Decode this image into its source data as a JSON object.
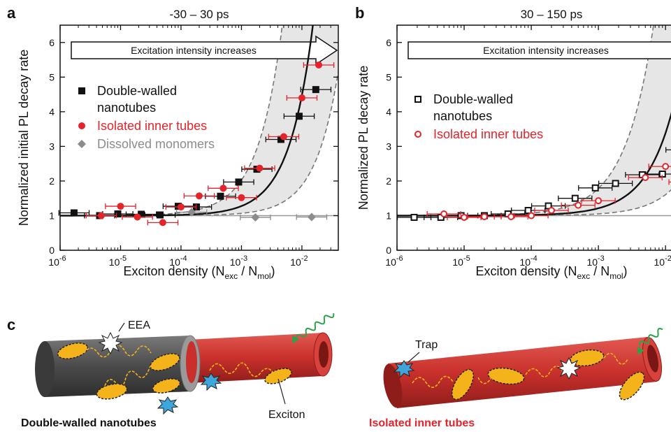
{
  "panel_labels": {
    "a": "a",
    "b": "b",
    "c": "c"
  },
  "colors": {
    "dw": "#111111",
    "inner": "#e3242b",
    "mono": "#8c8c8c",
    "shade": "#e6e6e6",
    "tube_grey": "#555555",
    "tube_red": "#c9302c",
    "exciton": "#f5b31b",
    "trap": "#3fa6dc",
    "photon": "#2ca24a"
  },
  "chart_data": [
    {
      "type": "scatter",
      "title": "-30 – 30 ps",
      "xlabel": "Exciton density (N",
      "xlabel_sub1": "exc",
      "xlabel_mid": " / N",
      "xlabel_sub2": "mol",
      "xlabel_end": ")",
      "ylabel": "Normalized initial PL decay rate",
      "x_scale": "log",
      "xlim": [
        1e-06,
        0.04
      ],
      "ylim": [
        0,
        6.5
      ],
      "x_ticks": [
        {
          "exp": "-6"
        },
        {
          "exp": "-5"
        },
        {
          "exp": "-4"
        },
        {
          "exp": "-3"
        },
        {
          "exp": "-2"
        }
      ],
      "x_tick_base": "10",
      "y_ticks": [
        "0",
        "1",
        "2",
        "3",
        "4",
        "5",
        "6"
      ],
      "arrow_text": "Excitation intensity increases",
      "legend": [
        {
          "name": "Double-walled",
          "name2": "nanotubes",
          "marker": "square-filled",
          "color": "#111111"
        },
        {
          "name": "Isolated inner tubes",
          "marker": "circle-filled",
          "color": "#e3242b"
        },
        {
          "name": "Dissolved monomers",
          "marker": "diamond-filled",
          "color": "#8c8c8c"
        }
      ],
      "series": [
        {
          "key": "dw",
          "marker": "square-filled",
          "color": "#111111",
          "points": [
            [
              1.7e-06,
              1.08
            ],
            [
              4.5e-06,
              1.0
            ],
            [
              9e-06,
              1.05
            ],
            [
              2.2e-05,
              1.04
            ],
            [
              4.5e-05,
              1.02
            ],
            [
              9e-05,
              1.27
            ],
            [
              0.00018,
              1.25
            ],
            [
              0.00045,
              1.56
            ],
            [
              0.0009,
              1.97
            ],
            [
              0.0018,
              2.34
            ],
            [
              0.0045,
              3.2
            ],
            [
              0.009,
              3.87
            ],
            [
              0.017,
              4.64
            ]
          ]
        },
        {
          "key": "inner",
          "marker": "circle-filled",
          "color": "#e3242b",
          "points": [
            [
              4.8e-06,
              1.0
            ],
            [
              1e-05,
              1.27
            ],
            [
              1.9e-05,
              0.96
            ],
            [
              5e-05,
              0.8
            ],
            [
              0.0001,
              1.25
            ],
            [
              0.0002,
              1.57
            ],
            [
              0.0005,
              1.79
            ],
            [
              0.001,
              1.52
            ],
            [
              0.002,
              2.37
            ],
            [
              0.005,
              3.28
            ],
            [
              0.01,
              4.4
            ],
            [
              0.019,
              5.35
            ]
          ]
        },
        {
          "key": "mono",
          "marker": "diamond-filled",
          "color": "#8c8c8c",
          "points": [
            [
              0.00015,
              1.1
            ],
            [
              0.0017,
              0.95
            ],
            [
              0.0145,
              0.96
            ]
          ]
        }
      ],
      "fit_curve": "1 + 550*x^1.1",
      "reference_line": 1
    },
    {
      "type": "scatter",
      "title": "30 – 150 ps",
      "xlabel": "Exciton density (N",
      "xlabel_sub1": "exc",
      "xlabel_mid": " / N",
      "xlabel_sub2": "mol",
      "xlabel_end": ")",
      "ylabel": "Normalized PL decay rate",
      "x_scale": "log",
      "xlim": [
        1e-06,
        0.04
      ],
      "ylim": [
        0,
        6.5
      ],
      "x_ticks": [
        {
          "exp": "-6"
        },
        {
          "exp": "-5"
        },
        {
          "exp": "-4"
        },
        {
          "exp": "-3"
        },
        {
          "exp": "-2"
        }
      ],
      "x_tick_base": "10",
      "y_ticks": [
        "0",
        "1",
        "2",
        "3",
        "4",
        "5",
        "6"
      ],
      "arrow_text": "Excitation intensity increases",
      "legend": [
        {
          "name": "Double-walled",
          "name2": "nanotubes",
          "marker": "square-open",
          "color": "#111111"
        },
        {
          "name": "Isolated inner tubes",
          "marker": "circle-open",
          "color": "#e3242b"
        }
      ],
      "series": [
        {
          "key": "dw",
          "marker": "square-open",
          "color": "#111111",
          "points": [
            [
              1.8e-06,
              0.95
            ],
            [
              4.5e-06,
              0.95
            ],
            [
              9e-06,
              1.0
            ],
            [
              2e-05,
              1.0
            ],
            [
              4.5e-05,
              1.05
            ],
            [
              9e-05,
              1.15
            ],
            [
              0.00018,
              1.28
            ],
            [
              0.00045,
              1.5
            ],
            [
              0.0009,
              1.8
            ],
            [
              0.0018,
              1.93
            ],
            [
              0.0045,
              2.18
            ],
            [
              0.009,
              2.2
            ],
            [
              0.018,
              2.9
            ]
          ]
        },
        {
          "key": "inner",
          "marker": "circle-open",
          "color": "#e3242b",
          "points": [
            [
              5e-06,
              1.05
            ],
            [
              1e-05,
              0.95
            ],
            [
              2e-05,
              0.97
            ],
            [
              5e-05,
              0.97
            ],
            [
              0.0001,
              1.0
            ],
            [
              0.0002,
              1.15
            ],
            [
              0.0005,
              1.3
            ],
            [
              0.001,
              1.43
            ],
            [
              0.005,
              2.1
            ],
            [
              0.01,
              2.42
            ],
            [
              0.02,
              1.97
            ]
          ]
        }
      ],
      "fit_curve": "1 + 300*x^1.05",
      "reference_line": 1
    }
  ],
  "schematic": {
    "eea_label": "EEA",
    "exciton_label": "Exciton",
    "trap_label": "Trap",
    "dw_caption": "Double-walled nanotubes",
    "inner_caption": "Isolated inner tubes"
  }
}
